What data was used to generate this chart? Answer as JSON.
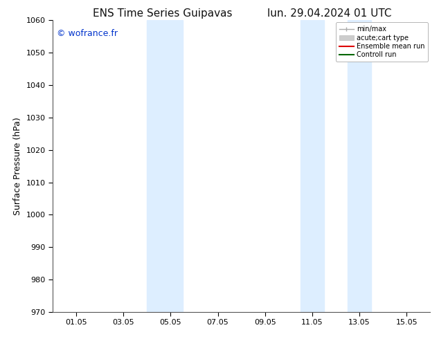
{
  "title_left": "ENS Time Series Guipavas",
  "title_right": "lun. 29.04.2024 01 UTC",
  "ylabel": "Surface Pressure (hPa)",
  "ylim": [
    970,
    1060
  ],
  "yticks": [
    970,
    980,
    990,
    1000,
    1010,
    1020,
    1030,
    1040,
    1050,
    1060
  ],
  "xlim": [
    0,
    16
  ],
  "xtick_positions": [
    1,
    3,
    5,
    7,
    9,
    11,
    13,
    15
  ],
  "xtick_labels": [
    "01.05",
    "03.05",
    "05.05",
    "07.05",
    "09.05",
    "11.05",
    "13.05",
    "15.05"
  ],
  "watermark": "© wofrance.fr",
  "watermark_color": "#0033cc",
  "background_color": "#ffffff",
  "plot_bg_color": "#ffffff",
  "shaded_bands": [
    {
      "xmin": 4.0,
      "xmax": 5.5
    },
    {
      "xmin": 10.5,
      "xmax": 11.5
    },
    {
      "xmin": 12.5,
      "xmax": 13.5
    }
  ],
  "shade_color": "#ddeeff",
  "legend_entries": [
    {
      "label": "min/max"
    },
    {
      "label": "acute;cart type"
    },
    {
      "label": "Ensemble mean run"
    },
    {
      "label": "Controll run"
    }
  ],
  "title_fontsize": 11,
  "tick_fontsize": 8,
  "ylabel_fontsize": 9
}
